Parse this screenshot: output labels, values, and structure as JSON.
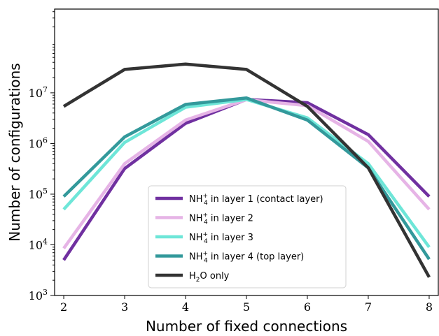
{
  "chart_data": {
    "type": "line",
    "xlabel": "Number of fixed connections",
    "ylabel": "Number of configurations",
    "x": [
      2,
      3,
      4,
      5,
      6,
      7,
      8
    ],
    "xlim": [
      1.85,
      8.15
    ],
    "ylim": [
      1000,
      450000000
    ],
    "yscale": "log",
    "y_ticks": [
      {
        "value": 1000,
        "base": "10",
        "exp": "3"
      },
      {
        "value": 10000,
        "base": "10",
        "exp": "4"
      },
      {
        "value": 100000,
        "base": "10",
        "exp": "5"
      },
      {
        "value": 1000000,
        "base": "10",
        "exp": "6"
      },
      {
        "value": 10000000,
        "base": "10",
        "exp": "7"
      }
    ],
    "grid": false,
    "legend_position": "bottom-center",
    "series": [
      {
        "name_main": "NH",
        "name_sup": "+",
        "name_sub": "4",
        "name_rest": " in layer 1 (contact layer)",
        "color": "#7030a0",
        "values": [
          5000,
          320000,
          2500000,
          7400000,
          6400000,
          1500000,
          90000
        ]
      },
      {
        "name_main": "NH",
        "name_sup": "+",
        "name_sub": "4",
        "name_rest": " in layer 2",
        "color": "#e6b4e6",
        "values": [
          8500,
          400000,
          2900000,
          7300000,
          5600000,
          1100000,
          50000
        ]
      },
      {
        "name_main": "NH",
        "name_sup": "+",
        "name_sub": "4",
        "name_rest": " in layer 3",
        "color": "#6ee6d8",
        "values": [
          50000,
          1050000,
          5200000,
          7400000,
          3200000,
          400000,
          9000
        ]
      },
      {
        "name_main": "NH",
        "name_sup": "+",
        "name_sub": "4",
        "name_rest": " in layer 4 (top layer)",
        "color": "#33999b",
        "values": [
          90000,
          1350000,
          5900000,
          7900000,
          2900000,
          330000,
          5200
        ]
      },
      {
        "name_main": "H",
        "name_sup": "",
        "name_sub": "2",
        "name_rest": "O only",
        "color": "#333333",
        "values": [
          5400000,
          29000000,
          37000000,
          29000000,
          5400000,
          330000,
          2300
        ]
      }
    ]
  }
}
